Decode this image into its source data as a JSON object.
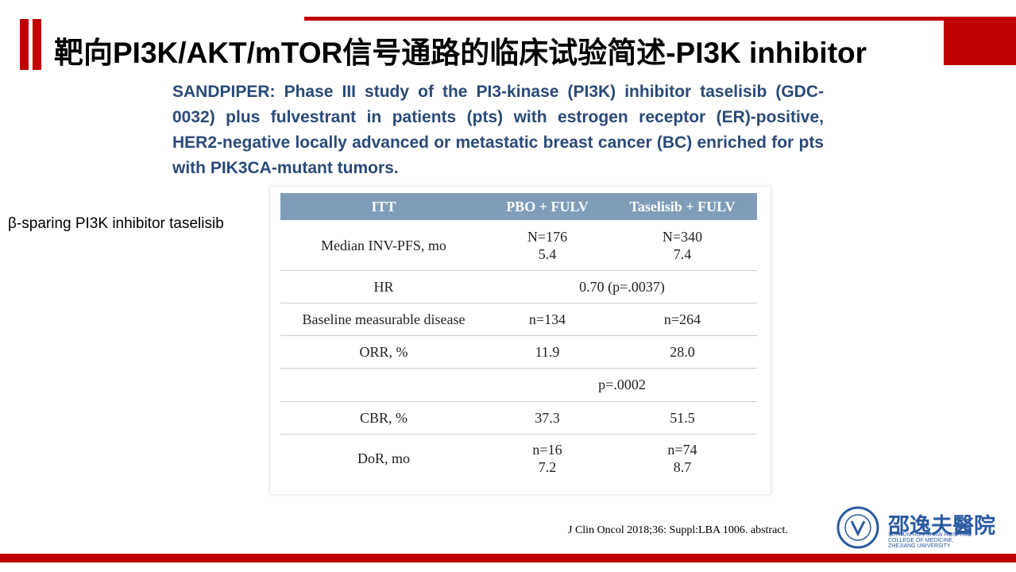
{
  "header": {
    "title": "靶向PI3K/AKT/mTOR信号通路的临床试验简述-PI3K inhibitor"
  },
  "subtitle": "SANDPIPER: Phase III study of the PI3-kinase (PI3K) inhibitor taselisib (GDC-0032) plus fulvestrant in patients (pts) with estrogen receptor (ER)-positive, HER2-negative locally advanced or metastatic breast cancer (BC) enriched for pts with PIK3CA-mutant tumors.",
  "side_note": "β-sparing PI3K inhibitor taselisib",
  "table": {
    "columns": [
      "ITT",
      "PBO + FULV",
      "Taselisib + FULV"
    ],
    "rows": [
      {
        "label": "Median INV-PFS, mo",
        "cells": [
          [
            "N=176",
            "5.4"
          ],
          [
            "N=340",
            "7.4"
          ]
        ]
      },
      {
        "label": "HR",
        "span": "0.70 (p=.0037)"
      },
      {
        "label": "Baseline measurable disease",
        "cells": [
          [
            "n=134"
          ],
          [
            "n=264"
          ]
        ]
      },
      {
        "label": "ORR, %",
        "cells": [
          [
            "11.9"
          ],
          [
            "28.0"
          ]
        ]
      },
      {
        "span": "p=.0002"
      },
      {
        "label": "CBR, %",
        "cells": [
          [
            "37.3"
          ],
          [
            "51.5"
          ]
        ]
      },
      {
        "label": "DoR, mo",
        "cells": [
          [
            "n=16",
            "7.2"
          ],
          [
            "n=74",
            "8.7"
          ]
        ]
      }
    ]
  },
  "citation": "J Clin Oncol 2018;36: Suppl:LBA 1006. abstract.",
  "logo": {
    "name_cn": "邵逸夫醫院",
    "name_en": [
      "SIR RUN RUN SHAW HOSPITAL",
      "COLLEGE OF MEDICINE,",
      "ZHEJIANG UNIVERSITY"
    ]
  }
}
